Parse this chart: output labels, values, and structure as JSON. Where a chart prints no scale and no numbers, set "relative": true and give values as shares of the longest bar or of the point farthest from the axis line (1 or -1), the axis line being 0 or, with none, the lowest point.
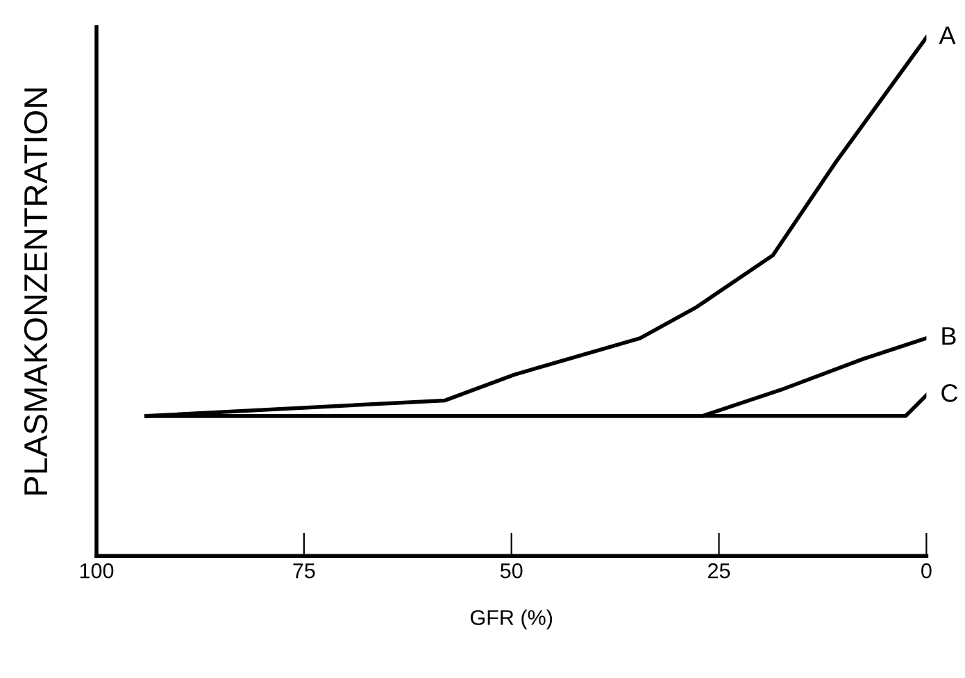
{
  "chart_data": {
    "type": "line",
    "relative": true,
    "xlabel": "GFR (%)",
    "ylabel": "PLASMAKONZENTRATION",
    "xlim": [
      100,
      0
    ],
    "xticks": [
      100,
      75,
      50,
      25,
      0
    ],
    "tick_labels": "x",
    "grid": false,
    "legend": false,
    "marker": "none",
    "line_style": "solid",
    "series": [
      {
        "name": "A",
        "color": "#000000",
        "x": [
          94,
          58,
          49.6,
          34.5,
          27.7,
          18.5,
          10.9,
          0
        ],
        "values": [
          0.27,
          0.3,
          0.35,
          0.42,
          0.48,
          0.58,
          0.76,
          1
        ]
      },
      {
        "name": "B",
        "color": "#000000",
        "x": [
          94,
          27,
          17.6,
          7.6,
          0
        ],
        "values": [
          0.27,
          0.27,
          0.32,
          0.38,
          0.42
        ]
      },
      {
        "name": "C",
        "color": "#000000",
        "x": [
          94,
          2.5,
          0
        ],
        "values": [
          0.27,
          0.27,
          0.31
        ]
      }
    ]
  }
}
